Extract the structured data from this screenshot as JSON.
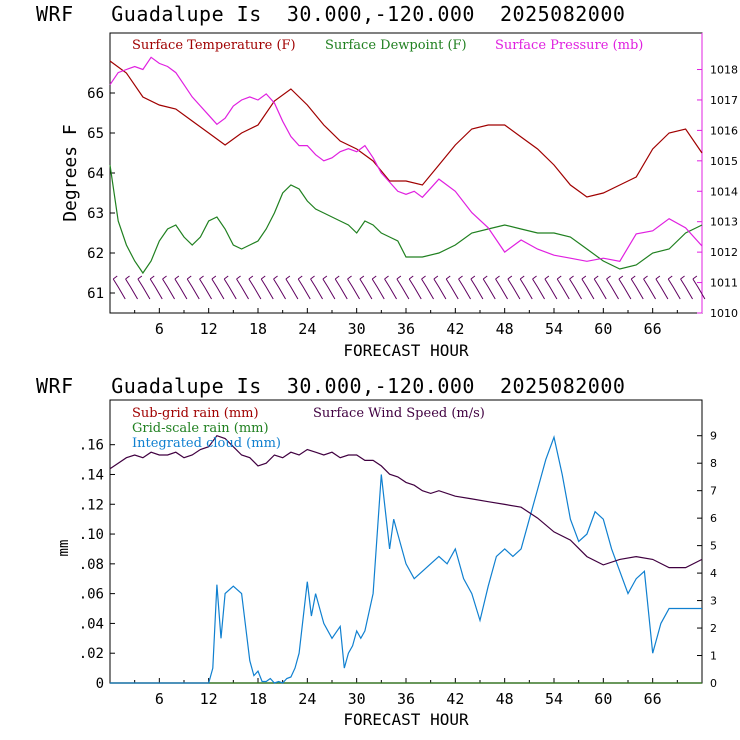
{
  "chart_data": [
    {
      "type": "line",
      "title": "WRF   Guadalupe Is  30.000,-120.000  2025082000",
      "xlabel": "FORECAST HOUR",
      "ylabel": "Degrees F",
      "xlim": [
        0,
        72
      ],
      "ylim": [
        60.5,
        67.5
      ],
      "y2lim": [
        1010,
        1019.2
      ],
      "xticks": [
        6,
        12,
        18,
        24,
        30,
        36,
        42,
        48,
        54,
        60,
        66
      ],
      "yticks": [
        61,
        62,
        63,
        64,
        65,
        66
      ],
      "y2ticks": [
        1010,
        1011,
        1012,
        1013,
        1014,
        1015,
        1016,
        1017,
        1018
      ],
      "series": [
        {
          "name": "Surface Temperature (F)",
          "color": "#a00000",
          "axis": "left",
          "x": [
            0,
            2,
            4,
            6,
            8,
            10,
            12,
            14,
            16,
            18,
            20,
            22,
            24,
            26,
            28,
            30,
            32,
            34,
            36,
            38,
            40,
            42,
            44,
            46,
            48,
            50,
            52,
            54,
            56,
            58,
            60,
            62,
            64,
            66,
            68,
            70,
            72
          ],
          "y": [
            66.8,
            66.5,
            65.9,
            65.7,
            65.6,
            65.3,
            65.0,
            64.7,
            65.0,
            65.2,
            65.8,
            66.1,
            65.7,
            65.2,
            64.8,
            64.6,
            64.3,
            63.8,
            63.8,
            63.7,
            64.2,
            64.7,
            65.1,
            65.2,
            65.2,
            64.9,
            64.6,
            64.2,
            63.7,
            63.4,
            63.5,
            63.7,
            63.9,
            64.6,
            65.0,
            65.1,
            64.5
          ]
        },
        {
          "name": "Surface Dewpoint (F)",
          "color": "#208020",
          "axis": "left",
          "x": [
            0,
            1,
            2,
            3,
            4,
            5,
            6,
            7,
            8,
            9,
            10,
            11,
            12,
            13,
            14,
            15,
            16,
            17,
            18,
            19,
            20,
            21,
            22,
            23,
            24,
            25,
            26,
            27,
            28,
            29,
            30,
            31,
            32,
            33,
            34,
            35,
            36,
            38,
            40,
            42,
            44,
            46,
            48,
            50,
            52,
            54,
            56,
            58,
            60,
            62,
            64,
            66,
            68,
            70,
            72
          ],
          "y": [
            64.2,
            62.8,
            62.2,
            61.8,
            61.5,
            61.8,
            62.3,
            62.6,
            62.7,
            62.4,
            62.2,
            62.4,
            62.8,
            62.9,
            62.6,
            62.2,
            62.1,
            62.2,
            62.3,
            62.6,
            63.0,
            63.5,
            63.7,
            63.6,
            63.3,
            63.1,
            63.0,
            62.9,
            62.8,
            62.7,
            62.5,
            62.8,
            62.7,
            62.5,
            62.4,
            62.3,
            61.9,
            61.9,
            62.0,
            62.2,
            62.5,
            62.6,
            62.7,
            62.6,
            62.5,
            62.5,
            62.4,
            62.1,
            61.8,
            61.6,
            61.7,
            62.0,
            62.1,
            62.5,
            62.7
          ]
        },
        {
          "name": "Surface Pressure (mb)",
          "color": "#e020e0",
          "axis": "right",
          "x": [
            0,
            1,
            2,
            3,
            4,
            5,
            6,
            7,
            8,
            9,
            10,
            11,
            12,
            13,
            14,
            15,
            16,
            17,
            18,
            19,
            20,
            21,
            22,
            23,
            24,
            25,
            26,
            27,
            28,
            29,
            30,
            31,
            32,
            33,
            34,
            35,
            36,
            37,
            38,
            39,
            40,
            42,
            44,
            46,
            48,
            50,
            52,
            54,
            56,
            58,
            60,
            62,
            64,
            66,
            68,
            70,
            72
          ],
          "y": [
            1017.5,
            1017.9,
            1018.0,
            1018.1,
            1018.0,
            1018.4,
            1018.2,
            1018.1,
            1017.9,
            1017.5,
            1017.1,
            1016.8,
            1016.5,
            1016.2,
            1016.4,
            1016.8,
            1017.0,
            1017.1,
            1017.0,
            1017.2,
            1016.9,
            1016.3,
            1015.8,
            1015.5,
            1015.5,
            1015.2,
            1015.0,
            1015.1,
            1015.3,
            1015.4,
            1015.3,
            1015.5,
            1015.1,
            1014.6,
            1014.3,
            1014.0,
            1013.9,
            1014.0,
            1013.8,
            1014.1,
            1014.4,
            1014.0,
            1013.3,
            1012.8,
            1012.0,
            1012.4,
            1012.1,
            1011.9,
            1011.8,
            1011.7,
            1011.8,
            1011.7,
            1012.6,
            1012.7,
            1013.1,
            1012.8,
            1012.2
          ]
        }
      ]
    },
    {
      "type": "line",
      "title": "WRF   Guadalupe Is  30.000,-120.000  2025082000",
      "xlabel": "FORECAST HOUR",
      "ylabel": "mm",
      "xlim": [
        0,
        72
      ],
      "ylim": [
        0,
        0.19
      ],
      "y2lim": [
        0,
        10.3
      ],
      "xticks": [
        6,
        12,
        18,
        24,
        30,
        36,
        42,
        48,
        54,
        60,
        66
      ],
      "yticks": [
        0,
        0.02,
        0.04,
        0.06,
        0.08,
        0.1,
        0.12,
        0.14,
        0.16
      ],
      "ytick_labels": [
        "0",
        ".02",
        ".04",
        ".06",
        ".08",
        ".10",
        ".12",
        ".14",
        ".16"
      ],
      "y2ticks": [
        0,
        1,
        2,
        3,
        4,
        5,
        6,
        7,
        8,
        9
      ],
      "series": [
        {
          "name": "Sub-grid rain (mm)",
          "color": "#a00000",
          "axis": "left",
          "x": [
            0,
            72
          ],
          "y": [
            0,
            0
          ]
        },
        {
          "name": "Grid-scale rain (mm)",
          "color": "#208020",
          "axis": "left",
          "x": [
            0,
            72
          ],
          "y": [
            0,
            0
          ]
        },
        {
          "name": "Integrated cloud (mm)",
          "color": "#1080d0",
          "axis": "left",
          "x": [
            0,
            12,
            12.5,
            13,
            13.5,
            14,
            15,
            16,
            17,
            17.5,
            18,
            18.5,
            19,
            19.5,
            20,
            20.5,
            21,
            21.5,
            22,
            22.5,
            23,
            24,
            24.5,
            25,
            26,
            27,
            28,
            28.5,
            29,
            29.5,
            30,
            30.5,
            31,
            32,
            33,
            34,
            34.5,
            35,
            36,
            37,
            38,
            39,
            40,
            41,
            42,
            43,
            44,
            45,
            46,
            47,
            48,
            49,
            50,
            51,
            52,
            53,
            54,
            55,
            56,
            57,
            58,
            59,
            60,
            61,
            62,
            63,
            64,
            65,
            66,
            67,
            68,
            69,
            70,
            71,
            72
          ],
          "y": [
            0,
            0,
            0.01,
            0.066,
            0.03,
            0.06,
            0.065,
            0.06,
            0.015,
            0.005,
            0.008,
            0.001,
            0.001,
            0.003,
            0.0,
            0.001,
            0.0,
            0.003,
            0.004,
            0.01,
            0.02,
            0.068,
            0.045,
            0.06,
            0.04,
            0.03,
            0.038,
            0.01,
            0.02,
            0.025,
            0.035,
            0.03,
            0.035,
            0.06,
            0.14,
            0.09,
            0.11,
            0.1,
            0.08,
            0.07,
            0.075,
            0.08,
            0.085,
            0.08,
            0.09,
            0.07,
            0.06,
            0.042,
            0.065,
            0.085,
            0.09,
            0.085,
            0.09,
            0.11,
            0.13,
            0.15,
            0.165,
            0.14,
            0.11,
            0.095,
            0.1,
            0.115,
            0.11,
            0.09,
            0.075,
            0.06,
            0.07,
            0.075,
            0.02,
            0.04,
            0.05,
            0.05,
            0.05,
            0.05,
            0.05
          ]
        },
        {
          "name": "Surface Wind Speed (m/s)",
          "color": "#400040",
          "axis": "right",
          "x": [
            0,
            1,
            2,
            3,
            4,
            5,
            6,
            7,
            8,
            9,
            10,
            11,
            12,
            13,
            14,
            15,
            16,
            17,
            18,
            19,
            20,
            21,
            22,
            23,
            24,
            25,
            26,
            27,
            28,
            29,
            30,
            31,
            32,
            33,
            34,
            35,
            36,
            37,
            38,
            39,
            40,
            42,
            44,
            46,
            48,
            50,
            52,
            54,
            56,
            58,
            60,
            62,
            64,
            66,
            68,
            70,
            72
          ],
          "y": [
            7.8,
            8.0,
            8.2,
            8.3,
            8.2,
            8.4,
            8.3,
            8.3,
            8.4,
            8.2,
            8.3,
            8.5,
            8.6,
            9.0,
            8.9,
            8.6,
            8.3,
            8.2,
            7.9,
            8.0,
            8.3,
            8.2,
            8.4,
            8.3,
            8.5,
            8.4,
            8.3,
            8.4,
            8.2,
            8.3,
            8.3,
            8.1,
            8.1,
            7.9,
            7.6,
            7.5,
            7.3,
            7.2,
            7.0,
            6.9,
            7.0,
            6.8,
            6.7,
            6.6,
            6.5,
            6.4,
            6.0,
            5.5,
            5.2,
            4.6,
            4.3,
            4.5,
            4.6,
            4.5,
            4.2,
            4.2,
            4.5
          ]
        }
      ]
    }
  ]
}
